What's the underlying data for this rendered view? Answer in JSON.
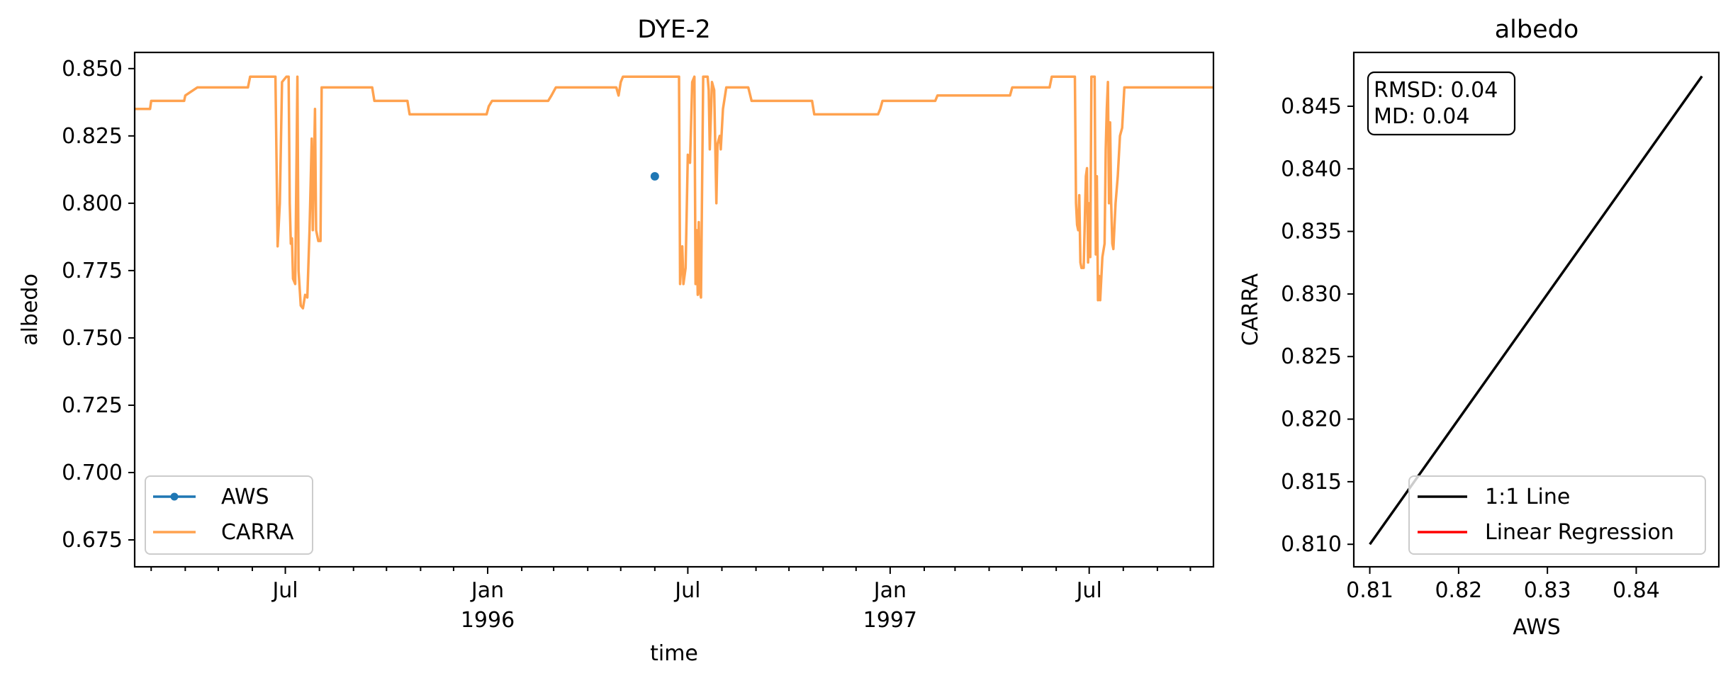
{
  "chart_data": [
    {
      "type": "line",
      "title": "DYE-2",
      "xlabel": "time",
      "ylabel": "albedo",
      "xlim": [
        "1995-02-14",
        "1997-10-22"
      ],
      "ylim": [
        0.665,
        0.856
      ],
      "yticks": [
        0.675,
        0.7,
        0.725,
        0.75,
        0.775,
        0.8,
        0.825,
        0.85
      ],
      "ytick_labels": [
        "0.675",
        "0.700",
        "0.725",
        "0.750",
        "0.775",
        "0.800",
        "0.825",
        "0.850"
      ],
      "xticks_major": [
        {
          "date": "1995-07-01",
          "label": "Jul"
        },
        {
          "date": "1996-01-01",
          "label": "Jan",
          "year": "1996"
        },
        {
          "date": "1996-07-01",
          "label": "Jul"
        },
        {
          "date": "1997-01-01",
          "label": "Jan",
          "year": "1997"
        },
        {
          "date": "1997-07-01",
          "label": "Jul"
        }
      ],
      "xticks_minor": [
        "1995-03-01",
        "1995-04-01",
        "1995-05-01",
        "1995-06-01",
        "1995-08-01",
        "1995-09-01",
        "1995-10-01",
        "1995-11-01",
        "1995-12-01",
        "1996-02-01",
        "1996-03-01",
        "1996-04-01",
        "1996-05-01",
        "1996-06-01",
        "1996-08-01",
        "1996-09-01",
        "1996-10-01",
        "1996-11-01",
        "1996-12-01",
        "1997-02-01",
        "1997-03-01",
        "1997-04-01",
        "1997-05-01",
        "1997-06-01",
        "1997-08-01",
        "1997-09-01",
        "1997-10-01"
      ],
      "legend_position": "lower-left",
      "series": [
        {
          "name": "AWS",
          "color": "#1f77b4",
          "marker": "dot",
          "points": [
            [
              "1996-06-01",
              0.81
            ]
          ]
        },
        {
          "name": "CARRA",
          "color": "#ffa24f",
          "points": [
            [
              "1995-02-14",
              0.835
            ],
            [
              "1995-02-28",
              0.835
            ],
            [
              "1995-03-01",
              0.838
            ],
            [
              "1995-03-31",
              0.838
            ],
            [
              "1995-04-01",
              0.84
            ],
            [
              "1995-04-12",
              0.843
            ],
            [
              "1995-05-28",
              0.843
            ],
            [
              "1995-05-30",
              0.847
            ],
            [
              "1995-06-22",
              0.847
            ],
            [
              "1995-06-24",
              0.784
            ],
            [
              "1995-06-26",
              0.8
            ],
            [
              "1995-06-28",
              0.845
            ],
            [
              "1995-07-02",
              0.847
            ],
            [
              "1995-07-04",
              0.847
            ],
            [
              "1995-07-05",
              0.8
            ],
            [
              "1995-07-06",
              0.785
            ],
            [
              "1995-07-07",
              0.787
            ],
            [
              "1995-07-08",
              0.772
            ],
            [
              "1995-07-10",
              0.77
            ],
            [
              "1995-07-12",
              0.847
            ],
            [
              "1995-07-13",
              0.775
            ],
            [
              "1995-07-15",
              0.762
            ],
            [
              "1995-07-17",
              0.761
            ],
            [
              "1995-07-19",
              0.766
            ],
            [
              "1995-07-21",
              0.765
            ],
            [
              "1995-07-23",
              0.79
            ],
            [
              "1995-07-25",
              0.824
            ],
            [
              "1995-07-26",
              0.79
            ],
            [
              "1995-07-28",
              0.835
            ],
            [
              "1995-07-29",
              0.79
            ],
            [
              "1995-07-31",
              0.786
            ],
            [
              "1995-08-02",
              0.786
            ],
            [
              "1995-08-03",
              0.843
            ],
            [
              "1995-09-18",
              0.843
            ],
            [
              "1995-09-20",
              0.838
            ],
            [
              "1995-10-20",
              0.838
            ],
            [
              "1995-10-22",
              0.833
            ],
            [
              "1995-12-31",
              0.833
            ],
            [
              "1996-01-02",
              0.836
            ],
            [
              "1996-01-05",
              0.838
            ],
            [
              "1996-02-25",
              0.838
            ],
            [
              "1996-02-28",
              0.84
            ],
            [
              "1996-03-03",
              0.843
            ],
            [
              "1996-04-27",
              0.843
            ],
            [
              "1996-04-29",
              0.84
            ],
            [
              "1996-05-01",
              0.845
            ],
            [
              "1996-05-03",
              0.847
            ],
            [
              "1996-06-23",
              0.847
            ],
            [
              "1996-06-24",
              0.77
            ],
            [
              "1996-06-26",
              0.784
            ],
            [
              "1996-06-27",
              0.77
            ],
            [
              "1996-06-29",
              0.776
            ],
            [
              "1996-07-01",
              0.818
            ],
            [
              "1996-07-03",
              0.815
            ],
            [
              "1996-07-05",
              0.845
            ],
            [
              "1996-07-07",
              0.847
            ],
            [
              "1996-07-08",
              0.77
            ],
            [
              "1996-07-09",
              0.79
            ],
            [
              "1996-07-10",
              0.766
            ],
            [
              "1996-07-11",
              0.793
            ],
            [
              "1996-07-12",
              0.767
            ],
            [
              "1996-07-13",
              0.765
            ],
            [
              "1996-07-15",
              0.847
            ],
            [
              "1996-07-19",
              0.847
            ],
            [
              "1996-07-20",
              0.842
            ],
            [
              "1996-07-21",
              0.82
            ],
            [
              "1996-07-23",
              0.845
            ],
            [
              "1996-07-25",
              0.842
            ],
            [
              "1996-07-27",
              0.8
            ],
            [
              "1996-07-28",
              0.822
            ],
            [
              "1996-07-30",
              0.825
            ],
            [
              "1996-07-31",
              0.82
            ],
            [
              "1996-08-02",
              0.835
            ],
            [
              "1996-08-05",
              0.843
            ],
            [
              "1996-08-25",
              0.843
            ],
            [
              "1996-08-28",
              0.838
            ],
            [
              "1996-10-22",
              0.838
            ],
            [
              "1996-10-24",
              0.833
            ],
            [
              "1996-12-21",
              0.833
            ],
            [
              "1996-12-23",
              0.835
            ],
            [
              "1996-12-25",
              0.838
            ],
            [
              "1997-02-11",
              0.838
            ],
            [
              "1997-02-13",
              0.84
            ],
            [
              "1997-04-20",
              0.84
            ],
            [
              "1997-04-22",
              0.843
            ],
            [
              "1997-05-26",
              0.843
            ],
            [
              "1997-05-28",
              0.847
            ],
            [
              "1997-06-18",
              0.847
            ],
            [
              "1997-06-19",
              0.8
            ],
            [
              "1997-06-20",
              0.792
            ],
            [
              "1997-06-21",
              0.79
            ],
            [
              "1997-06-22",
              0.803
            ],
            [
              "1997-06-23",
              0.778
            ],
            [
              "1997-06-24",
              0.776
            ],
            [
              "1997-06-26",
              0.776
            ],
            [
              "1997-06-28",
              0.81
            ],
            [
              "1997-06-29",
              0.813
            ],
            [
              "1997-06-30",
              0.778
            ],
            [
              "1997-07-01",
              0.8
            ],
            [
              "1997-07-02",
              0.78
            ],
            [
              "1997-07-03",
              0.847
            ],
            [
              "1997-07-06",
              0.847
            ],
            [
              "1997-07-07",
              0.781
            ],
            [
              "1997-07-08",
              0.81
            ],
            [
              "1997-07-09",
              0.764
            ],
            [
              "1997-07-10",
              0.773
            ],
            [
              "1997-07-11",
              0.764
            ],
            [
              "1997-07-13",
              0.78
            ],
            [
              "1997-07-15",
              0.785
            ],
            [
              "1997-07-16",
              0.82
            ],
            [
              "1997-07-17",
              0.835
            ],
            [
              "1997-07-18",
              0.845
            ],
            [
              "1997-07-19",
              0.8
            ],
            [
              "1997-07-20",
              0.83
            ],
            [
              "1997-07-21",
              0.8
            ],
            [
              "1997-07-22",
              0.785
            ],
            [
              "1997-07-23",
              0.783
            ],
            [
              "1997-07-25",
              0.8
            ],
            [
              "1997-07-27",
              0.81
            ],
            [
              "1997-07-29",
              0.825
            ],
            [
              "1997-07-31",
              0.828
            ],
            [
              "1997-08-02",
              0.843
            ],
            [
              "1997-10-22",
              0.843
            ]
          ]
        }
      ]
    },
    {
      "type": "line",
      "title": "albedo",
      "xlabel": "AWS",
      "ylabel": "CARRA",
      "xlim": [
        0.8082,
        0.8493
      ],
      "ylim": [
        0.8082,
        0.8493
      ],
      "xticks": [
        0.81,
        0.82,
        0.83,
        0.84
      ],
      "xtick_labels": [
        "0.81",
        "0.82",
        "0.83",
        "0.84"
      ],
      "yticks": [
        0.81,
        0.815,
        0.82,
        0.825,
        0.83,
        0.835,
        0.84,
        0.845
      ],
      "ytick_labels": [
        "0.810",
        "0.815",
        "0.820",
        "0.825",
        "0.830",
        "0.835",
        "0.840",
        "0.845"
      ],
      "annotation": [
        "RMSD: 0.04",
        "MD: 0.04"
      ],
      "legend_position": "lower-right",
      "series": [
        {
          "name": "1:1 Line",
          "color": "#000000",
          "points": [
            [
              0.81,
              0.81
            ],
            [
              0.8474,
              0.8474
            ]
          ]
        },
        {
          "name": "Linear Regression",
          "color": "#ff0000",
          "points": []
        }
      ]
    }
  ]
}
